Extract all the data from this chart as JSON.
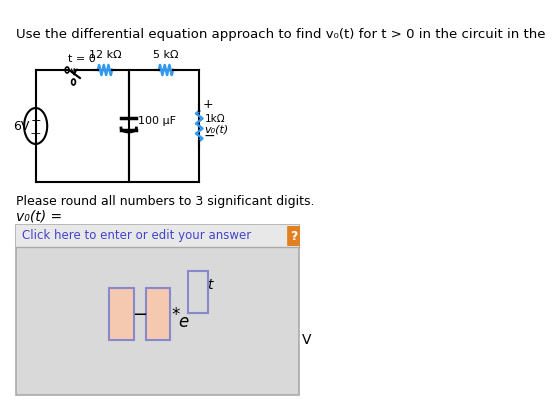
{
  "title_text": "Use the differential equation approach to find v₀(t) for t > 0 in the circuit in the",
  "bg_color": "#ffffff",
  "answer_box_bg": "#d9d9d9",
  "answer_box_border": "#c0c0c0",
  "click_text": "Click here to enter or edit your answer",
  "click_color": "#4444cc",
  "question_mark_bg": "#e08020",
  "round_text": "Please round all numbers to 3 significant digits.",
  "vo_label": "v₀(t) =",
  "v_right": "V",
  "input_box_border": "#8888cc",
  "input_box_fill": "#f5c8b0",
  "resistor1": "12 kΩ",
  "resistor2": "5 kΩ",
  "capacitor": "100 μF",
  "resistor3": "1kΩ",
  "voltage": "6V",
  "switch_label": "t = 0"
}
